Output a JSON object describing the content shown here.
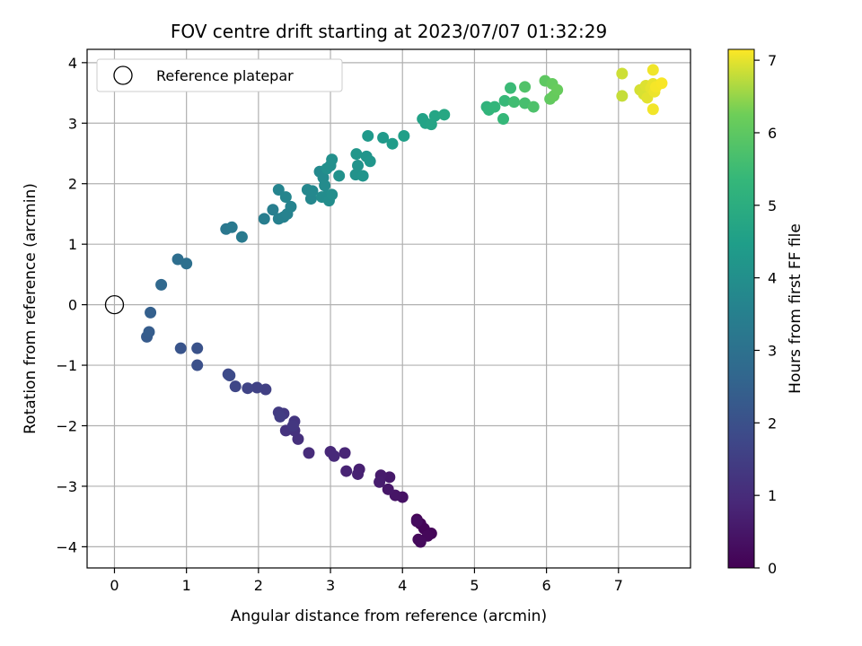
{
  "chart_data": {
    "type": "scatter",
    "title": "FOV centre drift starting at 2023/07/07 01:32:29",
    "xlabel": "Angular distance from reference (arcmin)",
    "ylabel": "Rotation from reference (arcmin)",
    "xlim": [
      -0.38,
      8.0
    ],
    "ylim": [
      -4.35,
      4.22
    ],
    "x_ticks": [
      0,
      1,
      2,
      3,
      4,
      5,
      6,
      7
    ],
    "x_tick_labels": [
      "0",
      "1",
      "2",
      "3",
      "4",
      "5",
      "6",
      "7"
    ],
    "y_ticks": [
      4,
      3,
      2,
      1,
      0,
      -1,
      -2,
      -3,
      -4
    ],
    "y_tick_labels": [
      "4",
      "3",
      "2",
      "1",
      "0",
      "−1",
      "−2",
      "−3",
      "−4"
    ],
    "grid": true,
    "legend": {
      "position": "top-left",
      "entries": [
        "Reference platepar"
      ]
    },
    "reference_point": {
      "x": 0,
      "y": 0
    },
    "colorbar": {
      "label": "Hours from first FF file",
      "colormap": "viridis",
      "range": [
        0,
        7.15
      ],
      "ticks": [
        0,
        1,
        2,
        3,
        4,
        5,
        6,
        7
      ],
      "tick_labels": [
        "0",
        "1",
        "2",
        "3",
        "4",
        "5",
        "6",
        "7"
      ]
    },
    "points": [
      {
        "x": 4.2,
        "y": -3.55,
        "h": 0.05
      },
      {
        "x": 4.25,
        "y": -3.62,
        "h": 0.08
      },
      {
        "x": 4.3,
        "y": -3.7,
        "h": 0.1
      },
      {
        "x": 4.4,
        "y": -3.78,
        "h": 0.12
      },
      {
        "x": 4.35,
        "y": -3.82,
        "h": 0.15
      },
      {
        "x": 4.22,
        "y": -3.88,
        "h": 0.18
      },
      {
        "x": 4.25,
        "y": -3.92,
        "h": 0.2
      },
      {
        "x": 4.2,
        "y": -3.58,
        "h": 0.25
      },
      {
        "x": 4.0,
        "y": -3.18,
        "h": 0.4
      },
      {
        "x": 3.9,
        "y": -3.15,
        "h": 0.45
      },
      {
        "x": 3.8,
        "y": -3.05,
        "h": 0.5
      },
      {
        "x": 3.82,
        "y": -2.85,
        "h": 0.55
      },
      {
        "x": 3.7,
        "y": -2.82,
        "h": 0.6
      },
      {
        "x": 3.68,
        "y": -2.93,
        "h": 0.65
      },
      {
        "x": 3.4,
        "y": -2.72,
        "h": 0.72
      },
      {
        "x": 3.38,
        "y": -2.8,
        "h": 0.75
      },
      {
        "x": 3.22,
        "y": -2.75,
        "h": 0.8
      },
      {
        "x": 3.2,
        "y": -2.45,
        "h": 0.85
      },
      {
        "x": 3.0,
        "y": -2.43,
        "h": 0.9
      },
      {
        "x": 3.05,
        "y": -2.5,
        "h": 0.95
      },
      {
        "x": 2.7,
        "y": -2.45,
        "h": 1.0
      },
      {
        "x": 2.55,
        "y": -2.22,
        "h": 1.1
      },
      {
        "x": 2.5,
        "y": -2.08,
        "h": 1.15
      },
      {
        "x": 2.38,
        "y": -2.08,
        "h": 1.2
      },
      {
        "x": 2.5,
        "y": -1.93,
        "h": 1.25
      },
      {
        "x": 2.48,
        "y": -2.0,
        "h": 1.3
      },
      {
        "x": 2.35,
        "y": -1.8,
        "h": 1.35
      },
      {
        "x": 2.28,
        "y": -1.78,
        "h": 1.4
      },
      {
        "x": 2.3,
        "y": -1.85,
        "h": 1.45
      },
      {
        "x": 2.1,
        "y": -1.4,
        "h": 1.55
      },
      {
        "x": 1.98,
        "y": -1.37,
        "h": 1.6
      },
      {
        "x": 1.85,
        "y": -1.38,
        "h": 1.65
      },
      {
        "x": 1.68,
        "y": -1.35,
        "h": 1.7
      },
      {
        "x": 1.58,
        "y": -1.15,
        "h": 1.8
      },
      {
        "x": 1.6,
        "y": -1.17,
        "h": 1.85
      },
      {
        "x": 1.15,
        "y": -1.0,
        "h": 2.0
      },
      {
        "x": 1.15,
        "y": -0.72,
        "h": 2.05
      },
      {
        "x": 0.92,
        "y": -0.72,
        "h": 2.1
      },
      {
        "x": 0.45,
        "y": -0.53,
        "h": 2.3
      },
      {
        "x": 0.48,
        "y": -0.45,
        "h": 2.35
      },
      {
        "x": 0.5,
        "y": -0.13,
        "h": 2.45
      },
      {
        "x": 0.65,
        "y": 0.33,
        "h": 2.7
      },
      {
        "x": 0.88,
        "y": 0.75,
        "h": 2.9
      },
      {
        "x": 1.0,
        "y": 0.68,
        "h": 2.95
      },
      {
        "x": 1.55,
        "y": 1.25,
        "h": 3.2
      },
      {
        "x": 1.63,
        "y": 1.28,
        "h": 3.25
      },
      {
        "x": 1.77,
        "y": 1.12,
        "h": 3.3
      },
      {
        "x": 2.08,
        "y": 1.42,
        "h": 3.4
      },
      {
        "x": 2.2,
        "y": 1.57,
        "h": 3.45
      },
      {
        "x": 2.28,
        "y": 1.42,
        "h": 3.5
      },
      {
        "x": 2.35,
        "y": 1.45,
        "h": 3.55
      },
      {
        "x": 2.4,
        "y": 1.5,
        "h": 3.58
      },
      {
        "x": 2.45,
        "y": 1.62,
        "h": 3.6
      },
      {
        "x": 2.28,
        "y": 1.9,
        "h": 3.65
      },
      {
        "x": 2.38,
        "y": 1.78,
        "h": 3.68
      },
      {
        "x": 2.68,
        "y": 1.9,
        "h": 3.72
      },
      {
        "x": 2.73,
        "y": 1.75,
        "h": 3.75
      },
      {
        "x": 2.75,
        "y": 1.88,
        "h": 3.78
      },
      {
        "x": 2.85,
        "y": 2.2,
        "h": 3.8
      },
      {
        "x": 2.9,
        "y": 2.1,
        "h": 3.82
      },
      {
        "x": 2.92,
        "y": 1.97,
        "h": 3.85
      },
      {
        "x": 2.88,
        "y": 1.78,
        "h": 3.88
      },
      {
        "x": 2.95,
        "y": 1.8,
        "h": 3.9
      },
      {
        "x": 2.98,
        "y": 1.72,
        "h": 3.92
      },
      {
        "x": 3.02,
        "y": 1.82,
        "h": 3.95
      },
      {
        "x": 2.95,
        "y": 2.25,
        "h": 3.98
      },
      {
        "x": 3.0,
        "y": 2.3,
        "h": 4.0
      },
      {
        "x": 3.02,
        "y": 2.4,
        "h": 4.02
      },
      {
        "x": 3.12,
        "y": 2.13,
        "h": 4.05
      },
      {
        "x": 3.35,
        "y": 2.15,
        "h": 4.1
      },
      {
        "x": 3.38,
        "y": 2.3,
        "h": 4.12
      },
      {
        "x": 3.45,
        "y": 2.13,
        "h": 4.15
      },
      {
        "x": 3.5,
        "y": 2.45,
        "h": 4.18
      },
      {
        "x": 3.55,
        "y": 2.37,
        "h": 4.2
      },
      {
        "x": 3.36,
        "y": 2.49,
        "h": 4.22
      },
      {
        "x": 3.52,
        "y": 2.79,
        "h": 4.3
      },
      {
        "x": 3.73,
        "y": 2.76,
        "h": 4.35
      },
      {
        "x": 3.86,
        "y": 2.66,
        "h": 4.4
      },
      {
        "x": 4.02,
        "y": 2.79,
        "h": 4.5
      },
      {
        "x": 4.28,
        "y": 3.07,
        "h": 4.6
      },
      {
        "x": 4.32,
        "y": 3.0,
        "h": 4.65
      },
      {
        "x": 4.4,
        "y": 2.98,
        "h": 4.7
      },
      {
        "x": 4.45,
        "y": 3.12,
        "h": 4.72
      },
      {
        "x": 4.58,
        "y": 3.14,
        "h": 4.8
      },
      {
        "x": 5.17,
        "y": 3.27,
        "h": 5.2
      },
      {
        "x": 5.2,
        "y": 3.22,
        "h": 5.25
      },
      {
        "x": 5.28,
        "y": 3.27,
        "h": 5.3
      },
      {
        "x": 5.4,
        "y": 3.07,
        "h": 5.35
      },
      {
        "x": 5.42,
        "y": 3.37,
        "h": 5.4
      },
      {
        "x": 5.5,
        "y": 3.58,
        "h": 5.45
      },
      {
        "x": 5.55,
        "y": 3.35,
        "h": 5.55
      },
      {
        "x": 5.7,
        "y": 3.33,
        "h": 5.65
      },
      {
        "x": 5.82,
        "y": 3.27,
        "h": 5.75
      },
      {
        "x": 5.7,
        "y": 3.6,
        "h": 5.8
      },
      {
        "x": 5.98,
        "y": 3.7,
        "h": 6.0
      },
      {
        "x": 6.05,
        "y": 3.4,
        "h": 6.05
      },
      {
        "x": 6.08,
        "y": 3.65,
        "h": 6.1
      },
      {
        "x": 6.1,
        "y": 3.45,
        "h": 6.12
      },
      {
        "x": 6.15,
        "y": 3.55,
        "h": 6.15
      },
      {
        "x": 7.05,
        "y": 3.45,
        "h": 6.8
      },
      {
        "x": 7.05,
        "y": 3.82,
        "h": 6.85
      },
      {
        "x": 7.3,
        "y": 3.55,
        "h": 6.9
      },
      {
        "x": 7.35,
        "y": 3.48,
        "h": 6.92
      },
      {
        "x": 7.38,
        "y": 3.62,
        "h": 6.95
      },
      {
        "x": 7.4,
        "y": 3.42,
        "h": 6.98
      },
      {
        "x": 7.45,
        "y": 3.58,
        "h": 7.0
      },
      {
        "x": 7.48,
        "y": 3.65,
        "h": 7.02
      },
      {
        "x": 7.5,
        "y": 3.52,
        "h": 7.05
      },
      {
        "x": 7.48,
        "y": 3.88,
        "h": 7.07
      },
      {
        "x": 7.48,
        "y": 3.23,
        "h": 7.08
      },
      {
        "x": 7.52,
        "y": 3.6,
        "h": 7.1
      },
      {
        "x": 7.6,
        "y": 3.66,
        "h": 7.12
      }
    ]
  }
}
